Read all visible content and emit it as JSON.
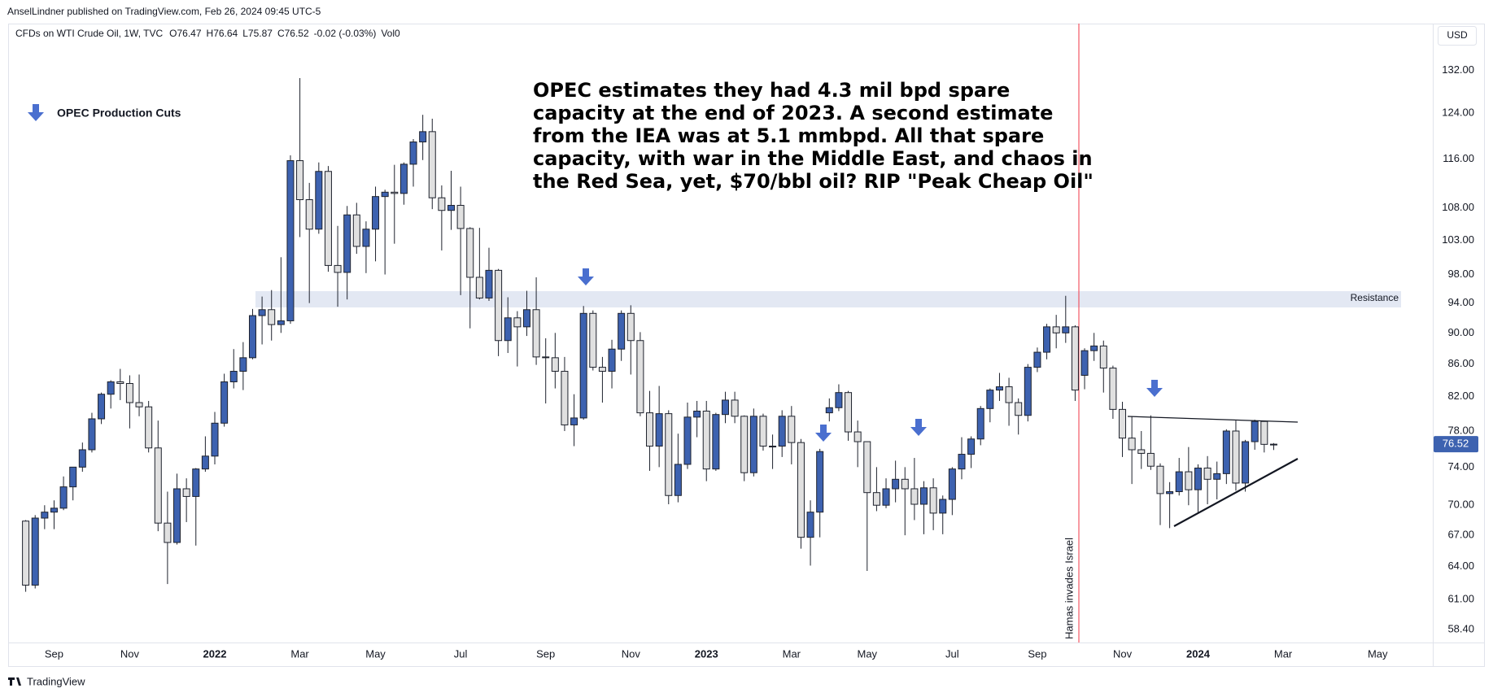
{
  "header": {
    "published": "AnselLindner published on TradingView.com, Feb 26, 2024 09:45 UTC-5",
    "symbol": "CFDs on WTI Crude Oil, 1W, TVC",
    "open": "O76.47",
    "high": "H76.64",
    "low": "L75.87",
    "close": "C76.52",
    "change": "-0.02 (-0.03%)",
    "volume": "Vol0"
  },
  "annotations": {
    "legend": "OPEC Production Cuts",
    "resistance": "Resistance",
    "event": "Hamas invades Israel",
    "note": [
      "OPEC estimates they had 4.3 mil bpd spare",
      "capacity at the end of 2023. A second estimate",
      "from the IEA was at 5.1 mmbpd. All that spare",
      "capacity, with war in the Middle East, and chaos in",
      "the Red Sea, yet, $70/bbl oil? RIP \"Peak Cheap Oil\""
    ]
  },
  "footer": {
    "brand": "TradingView"
  },
  "chart_data": {
    "type": "candlestick",
    "currency": "USD",
    "log_scale": true,
    "grid": false,
    "up_color": "#3d62b0",
    "down_color": "#e0e0e0",
    "wick_color": "#1e222d",
    "categories": [
      null,
      null,
      null,
      "Sep",
      null,
      null,
      null,
      null,
      null,
      null,
      null,
      "Nov",
      null,
      null,
      null,
      null,
      null,
      null,
      null,
      null,
      "2022",
      null,
      null,
      null,
      null,
      null,
      null,
      null,
      null,
      "Mar",
      null,
      null,
      null,
      null,
      null,
      null,
      null,
      "May",
      null,
      null,
      null,
      null,
      null,
      null,
      null,
      null,
      "Jul",
      null,
      null,
      null,
      null,
      null,
      null,
      null,
      null,
      "Sep",
      null,
      null,
      null,
      null,
      null,
      null,
      null,
      null,
      "Nov",
      null,
      null,
      null,
      null,
      null,
      null,
      null,
      "2023",
      null,
      null,
      null,
      null,
      null,
      null,
      null,
      null,
      "Mar",
      null,
      null,
      null,
      null,
      null,
      null,
      null,
      "May",
      null,
      null,
      null,
      null,
      null,
      null,
      null,
      null,
      "Jul",
      null,
      null,
      null,
      null,
      null,
      null,
      null,
      null,
      "Sep",
      null,
      null,
      null,
      null,
      null,
      null,
      null,
      null,
      "Nov",
      null,
      null,
      null,
      null,
      null,
      null,
      null,
      "2024",
      null,
      null,
      null,
      null,
      null,
      null,
      null,
      null,
      "Mar",
      null,
      null,
      null,
      null,
      null,
      null,
      null,
      null,
      null,
      "May",
      null
    ],
    "open": [
      68.4,
      62.3,
      68.7,
      69.3,
      69.7,
      71.9,
      74.0,
      75.9,
      79.4,
      82.3,
      83.8,
      83.6,
      81.3,
      80.8,
      76.1,
      68.2,
      66.3,
      71.7,
      70.9,
      73.8,
      75.2,
      78.9,
      83.8,
      85.1,
      86.8,
      92.3,
      93.1,
      91.1,
      91.6,
      115.7,
      109.3,
      104.7,
      113.9,
      99.3,
      98.3,
      106.9,
      102.1,
      104.7,
      109.8,
      110.5,
      110.3,
      115.1,
      118.9,
      120.7,
      109.6,
      107.6,
      108.4,
      104.8,
      97.6,
      94.7,
      98.6,
      89.0,
      92.0,
      90.8,
      93.1,
      86.9,
      86.8,
      85.1,
      78.7,
      79.5,
      92.6,
      85.6,
      85.1,
      87.9,
      92.6,
      89.0,
      80.1,
      76.3,
      80.0,
      71.0,
      74.3,
      79.6,
      80.3,
      73.8,
      79.9,
      81.6,
      79.7,
      73.4,
      79.7,
      76.3,
      76.3,
      79.7,
      76.7,
      66.8,
      69.3,
      80.1,
      80.7,
      82.5,
      77.9,
      76.8,
      71.3,
      70.0,
      71.7,
      72.7,
      71.7,
      70.1,
      71.8,
      69.2,
      70.6,
      73.8,
      75.4,
      77.1,
      80.6,
      82.8,
      83.2,
      81.3,
      79.8,
      85.6,
      87.5,
      90.8,
      90.0,
      90.8,
      84.6,
      87.7,
      88.3,
      85.5,
      80.5,
      77.2,
      75.9,
      75.5,
      74.1,
      71.2,
      71.4,
      73.5,
      71.6,
      73.9,
      72.7,
      73.3,
      78.0,
      72.3,
      76.8,
      79.1,
      76.47,
      null,
      null,
      null,
      null,
      null,
      null,
      null,
      null,
      null,
      null,
      null,
      null
    ],
    "high": [
      68.5,
      69.0,
      70.0,
      70.5,
      73.0,
      74.0,
      76.7,
      80.1,
      82.5,
      84.0,
      85.4,
      84.6,
      84.7,
      81.5,
      79.2,
      71.4,
      73.3,
      72.8,
      73.9,
      77.4,
      80.2,
      84.8,
      87.9,
      88.8,
      93.2,
      94.9,
      95.8,
      100.5,
      116.6,
      130.5,
      112.0,
      115.4,
      114.8,
      105.2,
      108.3,
      108.8,
      105.9,
      111.4,
      110.9,
      115.0,
      115.4,
      119.4,
      123.7,
      123.0,
      111.6,
      114.0,
      111.4,
      105.0,
      104.9,
      101.9,
      98.8,
      94.8,
      92.9,
      95.7,
      97.6,
      89.3,
      90.0,
      86.9,
      82.3,
      93.6,
      93.0,
      86.9,
      89.1,
      93.0,
      93.7,
      90.1,
      82.7,
      83.3,
      80.4,
      77.7,
      81.3,
      81.5,
      81.5,
      80.1,
      82.6,
      82.6,
      79.8,
      80.6,
      80.0,
      77.6,
      80.4,
      80.9,
      77.1,
      70.5,
      76.0,
      81.8,
      83.5,
      82.7,
      79.2,
      76.8,
      74.0,
      72.8,
      74.7,
      74.0,
      75.0,
      72.5,
      72.8,
      71.0,
      74.0,
      77.3,
      77.4,
      80.9,
      83.0,
      84.9,
      84.3,
      81.8,
      86.0,
      88.1,
      91.2,
      92.4,
      95.0,
      91.0,
      88.0,
      90.0,
      89.0,
      85.8,
      81.4,
      79.7,
      78.0,
      79.8,
      74.4,
      72.4,
      75.0,
      76.2,
      74.3,
      75.2,
      74.6,
      78.2,
      79.2,
      77.0,
      79.3,
      79.2,
      76.64,
      null,
      null,
      null,
      null,
      null,
      null,
      null,
      null,
      null,
      null,
      null,
      null
    ],
    "low": [
      61.7,
      62.0,
      67.6,
      67.6,
      69.5,
      70.5,
      73.5,
      75.6,
      78.8,
      80.6,
      81.6,
      78.3,
      79.7,
      75.6,
      67.4,
      62.4,
      66.1,
      68.3,
      66.0,
      73.5,
      74.3,
      78.5,
      83.0,
      82.8,
      86.6,
      88.5,
      89.0,
      90.0,
      91.2,
      103.5,
      94.0,
      104.0,
      98.4,
      93.5,
      94.5,
      101.0,
      98.2,
      99.9,
      98.0,
      102.5,
      108.5,
      111.4,
      115.8,
      107.8,
      101.5,
      104.6,
      95.1,
      90.6,
      94.5,
      94.3,
      87.0,
      87.4,
      85.7,
      89.6,
      85.9,
      81.2,
      83.0,
      78.0,
      76.3,
      79.3,
      85.2,
      81.3,
      83.0,
      86.4,
      84.7,
      79.7,
      73.6,
      74.0,
      70.1,
      70.3,
      73.8,
      77.3,
      72.5,
      73.6,
      78.9,
      78.9,
      72.5,
      73.0,
      75.8,
      73.8,
      75.1,
      74.3,
      65.7,
      64.1,
      66.8,
      79.1,
      80.3,
      76.9,
      74.0,
      63.6,
      69.4,
      69.7,
      70.3,
      67.0,
      68.5,
      67.1,
      67.5,
      67.1,
      69.0,
      72.7,
      73.9,
      76.4,
      79.0,
      81.5,
      78.6,
      77.6,
      79.1,
      85.0,
      86.6,
      88.0,
      88.7,
      81.5,
      82.9,
      86.4,
      82.5,
      79.4,
      75.1,
      72.2,
      73.8,
      73.7,
      68.0,
      67.7,
      71.0,
      70.0,
      69.3,
      70.1,
      70.6,
      72.2,
      71.5,
      71.4,
      75.9,
      75.6,
      75.87,
      null,
      null,
      null,
      null,
      null,
      null,
      null,
      null,
      null,
      null,
      null,
      null
    ],
    "close": [
      62.3,
      68.7,
      69.3,
      69.7,
      71.9,
      74.0,
      75.9,
      79.4,
      82.3,
      83.8,
      83.6,
      81.3,
      80.8,
      76.1,
      68.2,
      66.3,
      71.7,
      70.9,
      73.8,
      75.2,
      78.9,
      83.8,
      85.1,
      86.8,
      92.3,
      93.1,
      91.1,
      91.6,
      115.7,
      109.3,
      104.7,
      113.9,
      99.3,
      98.3,
      106.9,
      102.1,
      104.7,
      109.8,
      110.5,
      110.3,
      115.1,
      118.9,
      120.7,
      109.6,
      107.6,
      108.4,
      104.8,
      97.6,
      94.7,
      98.6,
      89.0,
      92.0,
      90.8,
      93.1,
      86.9,
      86.8,
      85.1,
      78.7,
      79.5,
      92.6,
      85.6,
      85.1,
      87.9,
      92.6,
      89.0,
      80.1,
      76.3,
      80.0,
      71.0,
      74.3,
      79.6,
      80.3,
      73.8,
      79.9,
      81.6,
      79.7,
      73.4,
      79.7,
      76.3,
      76.3,
      79.7,
      76.7,
      66.8,
      69.3,
      75.7,
      80.7,
      82.5,
      77.9,
      76.8,
      71.3,
      70.0,
      71.7,
      72.7,
      71.7,
      70.1,
      71.8,
      69.2,
      70.6,
      73.8,
      75.4,
      77.1,
      80.6,
      82.8,
      83.2,
      81.3,
      79.8,
      85.6,
      87.5,
      90.8,
      90.0,
      90.8,
      82.8,
      87.7,
      88.3,
      85.5,
      80.5,
      77.2,
      75.9,
      75.5,
      74.1,
      71.2,
      71.4,
      73.5,
      71.6,
      73.9,
      72.7,
      73.3,
      78.0,
      72.3,
      76.8,
      79.1,
      76.5,
      76.52,
      null,
      null,
      null,
      null,
      null,
      null,
      null,
      null,
      null,
      null,
      null,
      null
    ],
    "ylim": [
      57.3,
      141.3
    ],
    "yticks": [
      {
        "value": 58.4,
        "label": "58.40"
      },
      {
        "value": 61,
        "label": "61.00"
      },
      {
        "value": 64,
        "label": "64.00"
      },
      {
        "value": 67,
        "label": "67.00"
      },
      {
        "value": 70,
        "label": "70.00"
      },
      {
        "value": 74,
        "label": "74.00"
      },
      {
        "value": 78,
        "label": "78.00"
      },
      {
        "value": 82,
        "label": "82.00"
      },
      {
        "value": 86,
        "label": "86.00"
      },
      {
        "value": 90,
        "label": "90.00"
      },
      {
        "value": 94,
        "label": "94.00"
      },
      {
        "value": 98,
        "label": "98.00"
      },
      {
        "value": 103,
        "label": "103.00"
      },
      {
        "value": 108,
        "label": "108.00"
      },
      {
        "value": 116,
        "label": "116.00"
      },
      {
        "value": 124,
        "label": "124.00"
      },
      {
        "value": 132,
        "label": "132.00"
      }
    ]
  }
}
